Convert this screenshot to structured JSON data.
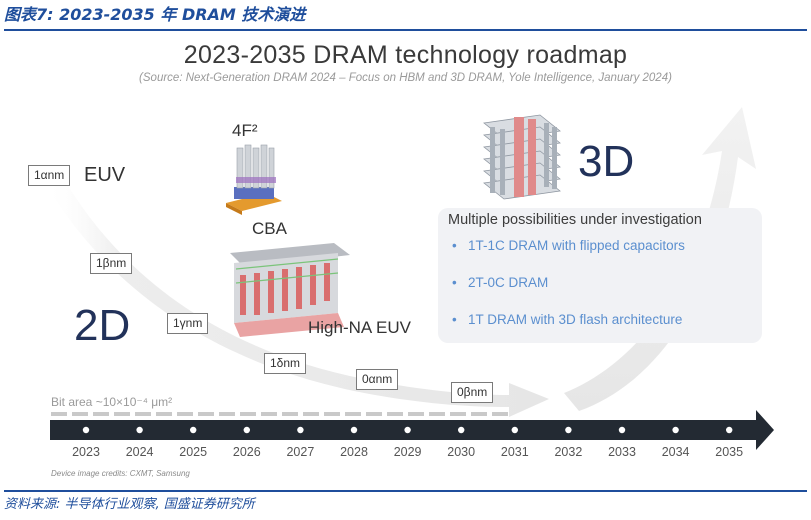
{
  "caption_top": "图表7:  2023-2035 年 DRAM 技术演进",
  "caption_bottom": "资料来源:  半导体行业观察,  国盛证券研究所",
  "title": "2023-2035 DRAM technology roadmap",
  "subtitle": "(Source: Next-Generation DRAM 2024 – Focus on HBM and 3D DRAM, Yole Intelligence, January 2024)",
  "nodes": [
    "1αnm",
    "1βnm",
    "1γnm",
    "1δnm",
    "0αnm",
    "0βnm"
  ],
  "labels": {
    "euv": "EUV",
    "twod": "2D",
    "threed": "3D",
    "four_f2": "4F²",
    "cba": "CBA",
    "high_na_euv": "High-NA EUV",
    "bit_area": "Bit area ~10×10⁻⁴ μm²"
  },
  "panel": {
    "heading": "Multiple possibilities under investigation",
    "items": [
      "1T-1C DRAM with flipped capacitors",
      "2T-0C DRAM",
      "1T DRAM with 3D flash architecture"
    ]
  },
  "timeline": {
    "years": [
      "2023",
      "2024",
      "2025",
      "2026",
      "2027",
      "2028",
      "2029",
      "2030",
      "2031",
      "2032",
      "2033",
      "2034",
      "2035"
    ]
  },
  "credits": "Device image credits: CXMT, Samsung"
}
